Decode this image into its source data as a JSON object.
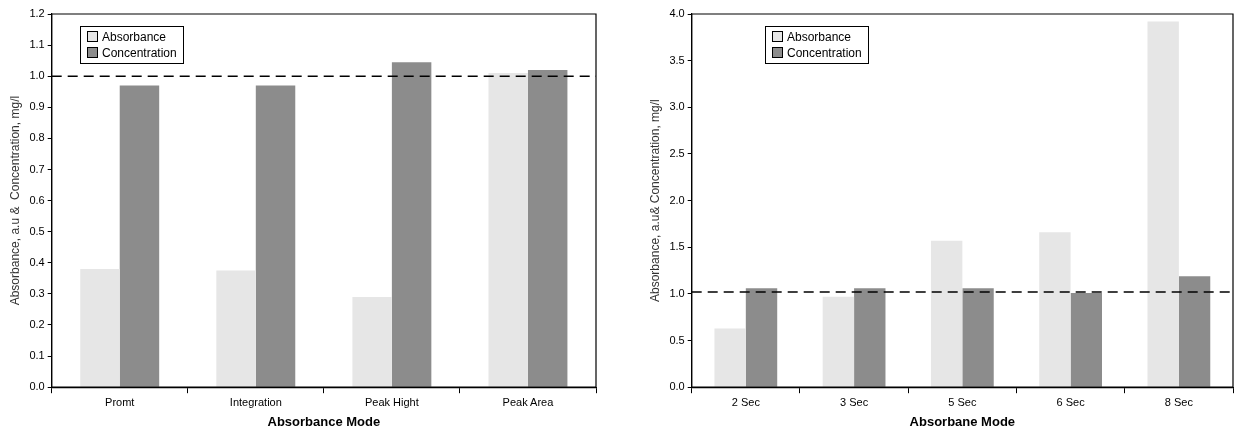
{
  "chart_data": [
    {
      "type": "bar",
      "xlabel": "Absorbance Mode",
      "ylabel": "Absorbance, a.u &  Concentration, mg/l",
      "categories": [
        "Promt",
        "Integration",
        "Peak Hight",
        "Peak Area"
      ],
      "series": [
        {
          "name": "Absorbance",
          "color": "#e6e6e6",
          "values": [
            0.38,
            0.375,
            0.29,
            1.01
          ]
        },
        {
          "name": "Concentration",
          "color": "#8c8c8c",
          "values": [
            0.97,
            0.97,
            1.045,
            1.02
          ]
        }
      ],
      "ylim": [
        0,
        1.2
      ],
      "yticks": [
        {
          "value": 0,
          "label": "0.0"
        },
        {
          "value": 0.1,
          "label": "0.1"
        },
        {
          "value": 0.2,
          "label": "0.2"
        },
        {
          "value": 0.3,
          "label": "0.3"
        },
        {
          "value": 0.4,
          "label": "0.4"
        },
        {
          "value": 0.5,
          "label": "0.5"
        },
        {
          "value": 0.6,
          "label": "0.6"
        },
        {
          "value": 0.7,
          "label": "0.7"
        },
        {
          "value": 0.8,
          "label": "0.8"
        },
        {
          "value": 0.9,
          "label": "0.9"
        },
        {
          "value": 1,
          "label": "1.0"
        },
        {
          "value": 1.1,
          "label": "1.1"
        },
        {
          "value": 1.2,
          "label": "1.2"
        }
      ],
      "ref_lines": [
        {
          "axis": "y",
          "value": 1,
          "line_style": "dashed",
          "color": "#000000"
        }
      ],
      "grid": false,
      "legend": "top left"
    },
    {
      "type": "bar",
      "xlabel": "Absorbane Mode",
      "ylabel": "Absorbance, a.u& Concentration, mg/l",
      "categories": [
        "2 Sec",
        "3 Sec",
        "5 Sec",
        "6 Sec",
        "8 Sec"
      ],
      "series": [
        {
          "name": "Absorbance",
          "color": "#e6e6e6",
          "values": [
            0.63,
            0.97,
            1.57,
            1.66,
            3.92
          ]
        },
        {
          "name": "Concentration",
          "color": "#8c8c8c",
          "values": [
            1.06,
            1.06,
            1.06,
            1.01,
            1.19
          ]
        }
      ],
      "ylim": [
        0,
        4
      ],
      "yticks": [
        {
          "value": 0,
          "label": "0.0"
        },
        {
          "value": 0.5,
          "label": "0.5"
        },
        {
          "value": 1,
          "label": "1.0"
        },
        {
          "value": 1.5,
          "label": "1.5"
        },
        {
          "value": 2,
          "label": "2.0"
        },
        {
          "value": 2.5,
          "label": "2.5"
        },
        {
          "value": 3,
          "label": "3.0"
        },
        {
          "value": 3.5,
          "label": "3.5"
        },
        {
          "value": 4,
          "label": "4.0"
        }
      ],
      "ref_lines": [
        {
          "axis": "y",
          "value": 1.02,
          "line_style": "dashed",
          "color": "#000000"
        }
      ],
      "grid": false,
      "legend": "top left"
    }
  ]
}
